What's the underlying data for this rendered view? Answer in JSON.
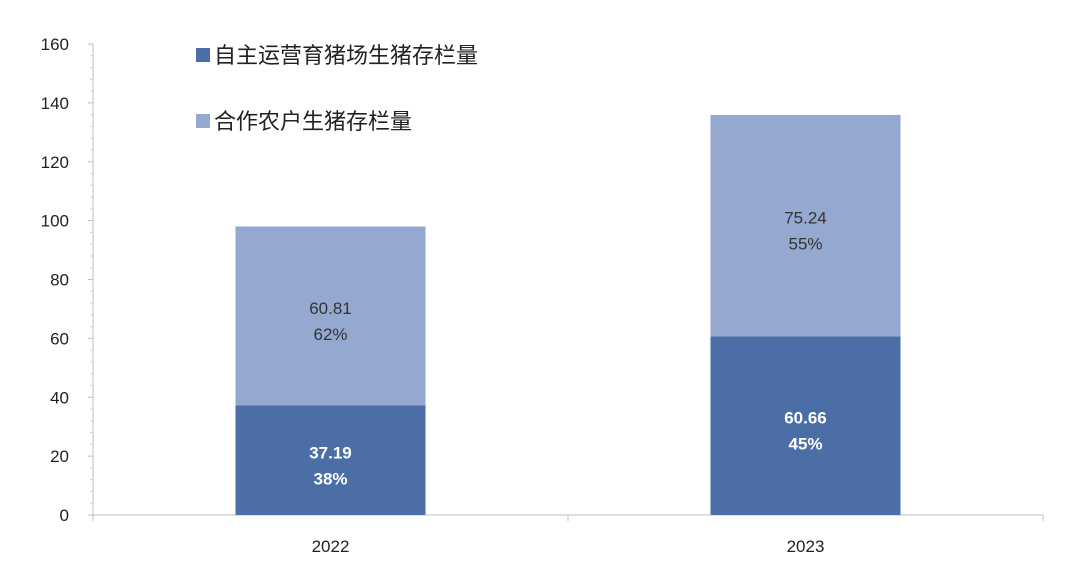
{
  "chart_data": {
    "type": "bar",
    "stacked": true,
    "categories": [
      "2022",
      "2023"
    ],
    "series": [
      {
        "name": "自主运营育猪场生猪存栏量",
        "color": "#4A6EA5",
        "values": [
          37.19,
          60.66
        ],
        "value_labels": [
          "37.19",
          "60.66"
        ],
        "percent_labels": [
          "38%",
          "45%"
        ]
      },
      {
        "name": "合作农户生猪存栏量",
        "color": "#94A8D0",
        "values": [
          60.81,
          75.24
        ],
        "value_labels": [
          "60.81",
          "75.24"
        ],
        "percent_labels": [
          "62%",
          "55%"
        ]
      }
    ],
    "ylim": [
      0,
      160
    ],
    "yticks": [
      "0",
      "20",
      "40",
      "60",
      "80",
      "100",
      "120",
      "140",
      "160"
    ],
    "legend_position": "top-left",
    "grid": false
  }
}
